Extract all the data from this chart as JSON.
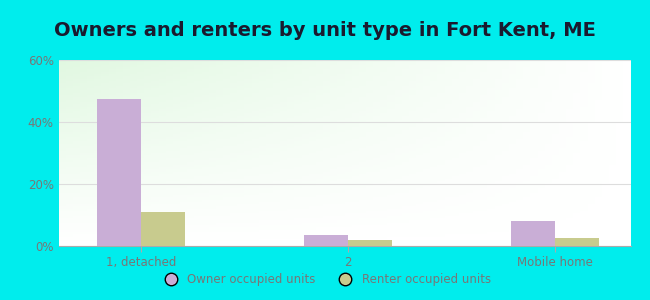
{
  "title": "Owners and renters by unit type in Fort Kent, ME",
  "categories": [
    "1, detached",
    "2",
    "Mobile home"
  ],
  "owner_values": [
    47.5,
    3.5,
    8.0
  ],
  "renter_values": [
    11.0,
    2.0,
    2.5
  ],
  "owner_color": "#c9aed6",
  "renter_color": "#c8cb8e",
  "ylim": [
    0,
    60
  ],
  "yticks": [
    0,
    20,
    40,
    60
  ],
  "ytick_labels": [
    "0%",
    "20%",
    "40%",
    "60%"
  ],
  "background_color": "#00eded",
  "title_fontsize": 14,
  "legend_labels": [
    "Owner occupied units",
    "Renter occupied units"
  ],
  "bar_width": 0.32,
  "tick_label_color": "#777777",
  "title_color": "#1a1a2e",
  "grid_color": "#dddddd"
}
